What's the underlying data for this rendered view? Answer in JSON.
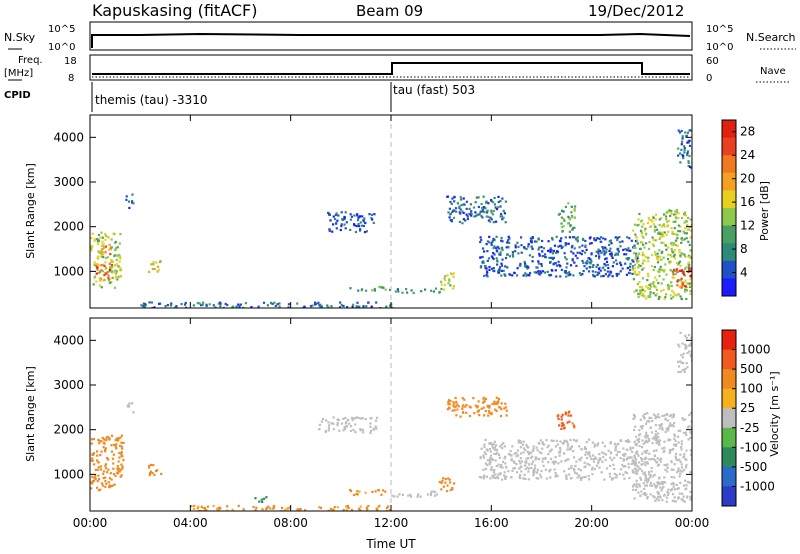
{
  "header": {
    "station": "Kapuskasing (fitACF)",
    "beam": "Beam 09",
    "date": "19/Dec/2012"
  },
  "top_panels": {
    "nsky_label": "N.Sky",
    "nsearch_label": "N.Search",
    "noise_ticks": [
      "10^5",
      "10^0"
    ],
    "freq_label_1": "Freq.",
    "freq_label_2": "[MHz]",
    "freq_ticks": [
      "18",
      "8"
    ],
    "nave_label": "Nave",
    "nave_ticks": [
      "60",
      "0"
    ],
    "cpid_label": "CPID",
    "cpid_left": "themis (tau) -3310",
    "cpid_right": "tau (fast) 503"
  },
  "colorbars": {
    "power": {
      "label": "Power [dB]",
      "ticks": [
        "28",
        "24",
        "20",
        "16",
        "12",
        "8",
        "4"
      ],
      "colors": [
        "#1c1cff",
        "#1e50c8",
        "#2e8a78",
        "#4aa060",
        "#8cc84a",
        "#e8d020",
        "#f5a020",
        "#f07820",
        "#e84020",
        "#e02010"
      ]
    },
    "velocity": {
      "label": "Velocity [m s⁻¹]",
      "ticks": [
        "1000",
        "500",
        "100",
        "25",
        "-25",
        "-100",
        "-500",
        "-1000"
      ],
      "colors": [
        "#2a3cc8",
        "#2a6ac8",
        "#2e8a5a",
        "#5ab848",
        "#bebebe",
        "#f5b020",
        "#f08a20",
        "#f05a20",
        "#e82010"
      ]
    }
  },
  "chart_data": [
    {
      "type": "heatmap",
      "title": "",
      "xlabel": "Time UT",
      "ylabel": "Slant Range [km]",
      "x_ticks": [
        "00:00",
        "04:00",
        "08:00",
        "12:00",
        "16:00",
        "20:00",
        "00:00"
      ],
      "y_ticks": [
        "1000",
        "2000",
        "3000",
        "4000"
      ],
      "xlim": [
        0,
        24
      ],
      "ylim": [
        180,
        4500
      ],
      "quantity": "Power",
      "units": "dB",
      "clim": [
        0,
        30
      ],
      "patches": [
        {
          "t0": 0.0,
          "t1": 1.2,
          "r0": 650,
          "r1": 1900,
          "value": 14
        },
        {
          "t0": 0.2,
          "t1": 0.9,
          "r0": 800,
          "r1": 1200,
          "value": 24
        },
        {
          "t0": 0.4,
          "t1": 0.8,
          "r0": 1400,
          "r1": 1700,
          "value": 22
        },
        {
          "t0": 2.3,
          "t1": 2.8,
          "r0": 1000,
          "r1": 1300,
          "value": 18
        },
        {
          "t0": 1.4,
          "t1": 1.7,
          "r0": 2400,
          "r1": 2750,
          "value": 6
        },
        {
          "t0": 10.3,
          "t1": 11.9,
          "r0": 580,
          "r1": 680,
          "value": 10
        },
        {
          "t0": 11.9,
          "t1": 13.9,
          "r0": 540,
          "r1": 640,
          "value": 8
        },
        {
          "t0": 13.9,
          "t1": 14.5,
          "r0": 600,
          "r1": 1000,
          "value": 14
        },
        {
          "t0": 14.2,
          "t1": 16.6,
          "r0": 2100,
          "r1": 2700,
          "value": 6
        },
        {
          "t0": 15.5,
          "t1": 21.8,
          "r0": 900,
          "r1": 1800,
          "value": 5
        },
        {
          "t0": 18.6,
          "t1": 19.3,
          "r0": 1900,
          "r1": 2550,
          "value": 10
        },
        {
          "t0": 21.6,
          "t1": 24.0,
          "r0": 400,
          "r1": 2400,
          "value": 14
        },
        {
          "t0": 23.2,
          "t1": 24.0,
          "r0": 650,
          "r1": 1100,
          "value": 26
        },
        {
          "t0": 9.4,
          "t1": 11.3,
          "r0": 1900,
          "r1": 2350,
          "value": 5
        },
        {
          "t0": 23.4,
          "t1": 24.0,
          "r0": 3300,
          "r1": 4200,
          "value": 6
        },
        {
          "t0": 2.0,
          "t1": 12.0,
          "r0": 200,
          "r1": 330,
          "value": 6
        }
      ]
    },
    {
      "type": "heatmap",
      "title": "",
      "xlabel": "Time UT",
      "ylabel": "Slant Range [km]",
      "x_ticks": [
        "00:00",
        "04:00",
        "08:00",
        "12:00",
        "16:00",
        "20:00",
        "00:00"
      ],
      "y_ticks": [
        "1000",
        "2000",
        "3000",
        "4000"
      ],
      "xlim": [
        0,
        24
      ],
      "ylim": [
        180,
        4500
      ],
      "quantity": "Velocity",
      "units": "m s-1",
      "clim": [
        -1000,
        1000
      ],
      "patches": [
        {
          "t0": 0.0,
          "t1": 1.3,
          "r0": 650,
          "r1": 1900,
          "value": -300
        },
        {
          "t0": 2.3,
          "t1": 2.8,
          "r0": 1000,
          "r1": 1300,
          "value": -400
        },
        {
          "t0": 1.4,
          "t1": 1.7,
          "r0": 2400,
          "r1": 2700,
          "value": 0
        },
        {
          "t0": 10.3,
          "t1": 11.9,
          "r0": 560,
          "r1": 680,
          "value": -120
        },
        {
          "t0": 11.9,
          "t1": 13.9,
          "r0": 520,
          "r1": 640,
          "value": 0
        },
        {
          "t0": 13.9,
          "t1": 14.5,
          "r0": 600,
          "r1": 950,
          "value": -150
        },
        {
          "t0": 14.2,
          "t1": 16.6,
          "r0": 2300,
          "r1": 2750,
          "value": -200
        },
        {
          "t0": 15.5,
          "t1": 21.8,
          "r0": 900,
          "r1": 1800,
          "value": 0
        },
        {
          "t0": 18.6,
          "t1": 19.3,
          "r0": 2000,
          "r1": 2450,
          "value": -600
        },
        {
          "t0": 21.6,
          "t1": 24.0,
          "r0": 400,
          "r1": 2400,
          "value": 0
        },
        {
          "t0": 9.0,
          "t1": 11.4,
          "r0": 1950,
          "r1": 2300,
          "value": 0
        },
        {
          "t0": 23.4,
          "t1": 24.0,
          "r0": 3300,
          "r1": 4200,
          "value": 0
        },
        {
          "t0": 4.0,
          "t1": 12.0,
          "r0": 200,
          "r1": 320,
          "value": -120
        },
        {
          "t0": 6.5,
          "t1": 7.0,
          "r0": 400,
          "r1": 520,
          "value": 200
        }
      ]
    }
  ]
}
